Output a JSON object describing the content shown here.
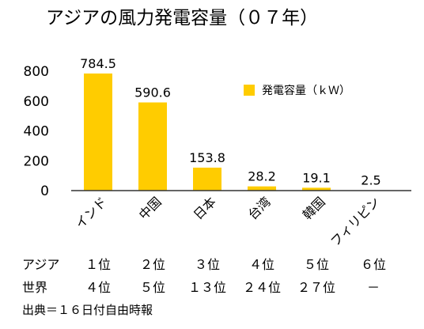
{
  "chart_data": {
    "type": "bar",
    "title": "アジアの風力発電容量（０７年）",
    "categories": [
      "インド",
      "中国",
      "日本",
      "台湾",
      "韓国",
      "フィリピン"
    ],
    "series": [
      {
        "name": "発電容量（ｋＷ）",
        "values": [
          784.5,
          590.6,
          153.8,
          28.2,
          19.1,
          2.5
        ]
      }
    ],
    "data_labels": [
      "784.5",
      "590.6",
      "153.8",
      "28.2",
      "19.1",
      "2.5"
    ],
    "yticks": [
      "0",
      "200",
      "400",
      "600",
      "800"
    ],
    "ylim": [
      0,
      800
    ],
    "legend_position": "top-right",
    "grid": false,
    "bar_color": "#FFCC00"
  },
  "rankings": {
    "asia": {
      "label": "アジア",
      "values": [
        "１位",
        "２位",
        "３位",
        "４位",
        "５位",
        "６位"
      ]
    },
    "world": {
      "label": "世界",
      "values": [
        "４位",
        "５位",
        "１３位",
        "２４位",
        "２７位",
        "－"
      ]
    }
  },
  "source": "出典＝１６日付自由時報"
}
